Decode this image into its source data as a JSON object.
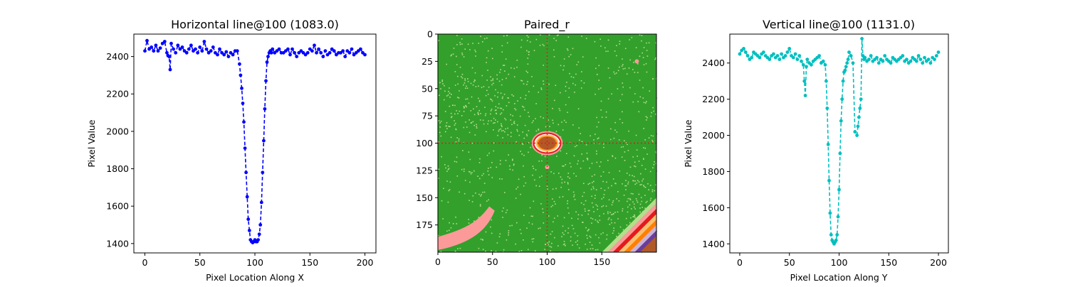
{
  "chart_data": [
    {
      "type": "line",
      "title": "Horizontal line@100 (1083.0)",
      "xlabel": "Pixel Location Along X",
      "ylabel": "Pixel Value",
      "xlim": [
        -10,
        210
      ],
      "ylim": [
        1350,
        2520
      ],
      "x_ticks": [
        0,
        50,
        100,
        150,
        200
      ],
      "y_ticks": [
        1400,
        1600,
        1800,
        2000,
        2200,
        2400
      ],
      "color": "#0000ff",
      "linestyle": "dashed",
      "marker": "circle",
      "series": [
        {
          "x": [
            0,
            2,
            4,
            6,
            8,
            10,
            12,
            14,
            16,
            18,
            20,
            21,
            22,
            23,
            24,
            26,
            28,
            30,
            32,
            34,
            36,
            38,
            40,
            42,
            44,
            46,
            48,
            50,
            52,
            54,
            56,
            58,
            60,
            62,
            64,
            66,
            68,
            70,
            72,
            74,
            76,
            78,
            80,
            82,
            84,
            86,
            87,
            88,
            89,
            90,
            91,
            92,
            93,
            94,
            95,
            96,
            97,
            98,
            99,
            100,
            101,
            102,
            103,
            104,
            105,
            106,
            107,
            108,
            109,
            110,
            111,
            112,
            113,
            114,
            115,
            116,
            118,
            120,
            122,
            124,
            126,
            128,
            130,
            132,
            134,
            136,
            138,
            140,
            142,
            144,
            146,
            148,
            150,
            152,
            154,
            156,
            158,
            160,
            162,
            164,
            166,
            168,
            170,
            172,
            174,
            176,
            178,
            180,
            182,
            184,
            186,
            188,
            190,
            192,
            194,
            196,
            198,
            200
          ],
          "y": [
            2430,
            2485,
            2440,
            2450,
            2430,
            2460,
            2430,
            2445,
            2470,
            2480,
            2420,
            2405,
            2400,
            2330,
            2470,
            2440,
            2420,
            2460,
            2440,
            2450,
            2430,
            2420,
            2440,
            2460,
            2430,
            2440,
            2420,
            2450,
            2430,
            2480,
            2440,
            2420,
            2430,
            2450,
            2420,
            2410,
            2440,
            2420,
            2410,
            2425,
            2400,
            2420,
            2410,
            2430,
            2430,
            2360,
            2300,
            2230,
            2150,
            2050,
            1910,
            1780,
            1650,
            1530,
            1470,
            1420,
            1410,
            1405,
            1410,
            1420,
            1410,
            1410,
            1420,
            1450,
            1500,
            1620,
            1780,
            1950,
            2120,
            2270,
            2370,
            2400,
            2420,
            2430,
            2420,
            2440,
            2420,
            2430,
            2440,
            2420,
            2420,
            2430,
            2440,
            2410,
            2440,
            2420,
            2400,
            2420,
            2430,
            2420,
            2410,
            2420,
            2440,
            2430,
            2460,
            2420,
            2440,
            2420,
            2400,
            2430,
            2410,
            2420,
            2440,
            2430,
            2410,
            2420,
            2420,
            2430,
            2400,
            2430,
            2420,
            2440,
            2410,
            2420,
            2430,
            2440,
            2420,
            2410
          ]
        }
      ]
    },
    {
      "type": "heatmap",
      "title": "Paired_r",
      "colormap": "Paired_r",
      "xlim": [
        0,
        200
      ],
      "ylim": [
        200,
        0
      ],
      "x_ticks": [
        0,
        50,
        100,
        150
      ],
      "y_ticks": [
        0,
        25,
        50,
        75,
        100,
        125,
        150,
        175
      ],
      "crosshair": {
        "x": 100,
        "y": 100,
        "color": "#e31a1c",
        "linestyle": "dotted"
      },
      "bright_spot": {
        "x": 100,
        "y": 100
      }
    },
    {
      "type": "line",
      "title": "Vertical line@100 (1131.0)",
      "xlabel": "Pixel Location Along Y",
      "ylabel": "Pixel Value",
      "xlim": [
        -10,
        210
      ],
      "ylim": [
        1350,
        2560
      ],
      "x_ticks": [
        0,
        50,
        100,
        150,
        200
      ],
      "y_ticks": [
        1400,
        1600,
        1800,
        2000,
        2200,
        2400
      ],
      "color": "#00bfbf",
      "linestyle": "dashed",
      "marker": "circle",
      "series": [
        {
          "x": [
            0,
            2,
            4,
            6,
            8,
            10,
            12,
            14,
            16,
            18,
            20,
            22,
            24,
            26,
            28,
            30,
            32,
            34,
            36,
            38,
            40,
            42,
            44,
            46,
            48,
            50,
            52,
            54,
            56,
            58,
            60,
            62,
            64,
            65,
            66,
            67,
            68,
            70,
            72,
            74,
            76,
            78,
            80,
            82,
            84,
            86,
            87,
            88,
            89,
            90,
            91,
            92,
            93,
            94,
            95,
            96,
            97,
            98,
            99,
            100,
            101,
            102,
            103,
            104,
            105,
            106,
            107,
            108,
            109,
            110,
            112,
            114,
            116,
            118,
            119,
            120,
            121,
            122,
            123,
            124,
            125,
            126,
            128,
            130,
            132,
            134,
            136,
            138,
            140,
            142,
            144,
            146,
            148,
            150,
            152,
            154,
            156,
            158,
            160,
            162,
            164,
            166,
            168,
            170,
            172,
            174,
            176,
            178,
            180,
            182,
            184,
            186,
            188,
            190,
            192,
            194,
            196,
            198,
            200
          ],
          "y": [
            2450,
            2470,
            2480,
            2460,
            2440,
            2420,
            2430,
            2460,
            2450,
            2440,
            2430,
            2450,
            2460,
            2440,
            2430,
            2420,
            2440,
            2450,
            2430,
            2440,
            2420,
            2450,
            2430,
            2440,
            2460,
            2480,
            2440,
            2430,
            2450,
            2420,
            2440,
            2410,
            2390,
            2300,
            2220,
            2380,
            2420,
            2400,
            2390,
            2410,
            2420,
            2430,
            2440,
            2400,
            2410,
            2390,
            2300,
            2150,
            1950,
            1750,
            1570,
            1450,
            1420,
            1410,
            1400,
            1410,
            1420,
            1450,
            1550,
            1700,
            1900,
            2080,
            2200,
            2300,
            2350,
            2360,
            2380,
            2400,
            2420,
            2460,
            2440,
            2400,
            2020,
            2000,
            2050,
            2100,
            2150,
            2200,
            2535,
            2440,
            2420,
            2430,
            2410,
            2420,
            2440,
            2410,
            2420,
            2430,
            2400,
            2420,
            2410,
            2440,
            2420,
            2410,
            2400,
            2430,
            2420,
            2410,
            2420,
            2430,
            2440,
            2410,
            2420,
            2400,
            2410,
            2430,
            2420,
            2410,
            2440,
            2420,
            2400,
            2430,
            2410,
            2420,
            2400,
            2430,
            2420,
            2440,
            2460
          ]
        }
      ]
    }
  ]
}
